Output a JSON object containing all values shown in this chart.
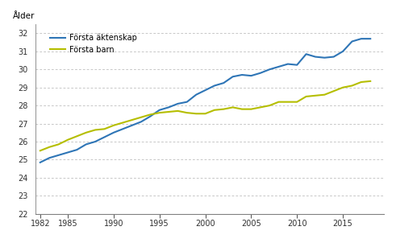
{
  "years": [
    1982,
    1983,
    1984,
    1985,
    1986,
    1987,
    1988,
    1989,
    1990,
    1991,
    1992,
    1993,
    1994,
    1995,
    1996,
    1997,
    1998,
    1999,
    2000,
    2001,
    2002,
    2003,
    2004,
    2005,
    2006,
    2007,
    2008,
    2009,
    2010,
    2011,
    2012,
    2013,
    2014,
    2015,
    2016,
    2017,
    2018
  ],
  "forsta_aktenskap": [
    24.85,
    25.1,
    25.25,
    25.4,
    25.55,
    25.85,
    26.0,
    26.25,
    26.5,
    26.7,
    26.9,
    27.1,
    27.4,
    27.75,
    27.9,
    28.1,
    28.2,
    28.6,
    28.85,
    29.1,
    29.25,
    29.6,
    29.7,
    29.65,
    29.8,
    30.0,
    30.15,
    30.3,
    30.25,
    30.85,
    30.7,
    30.65,
    30.7,
    31.0,
    31.55,
    31.7,
    31.7
  ],
  "forsta_barn": [
    25.5,
    25.7,
    25.85,
    26.1,
    26.3,
    26.5,
    26.65,
    26.7,
    26.9,
    27.05,
    27.2,
    27.35,
    27.5,
    27.6,
    27.65,
    27.7,
    27.6,
    27.55,
    27.55,
    27.75,
    27.8,
    27.9,
    27.8,
    27.8,
    27.9,
    28.0,
    28.2,
    28.2,
    28.2,
    28.5,
    28.55,
    28.6,
    28.8,
    29.0,
    29.1,
    29.3,
    29.35
  ],
  "aktenskap_color": "#2e75b6",
  "barn_color": "#b5be00",
  "ylim": [
    22,
    32.5
  ],
  "yticks": [
    22,
    23,
    24,
    25,
    26,
    27,
    28,
    29,
    30,
    31,
    32
  ],
  "xticks": [
    1982,
    1985,
    1990,
    1995,
    2000,
    2005,
    2010,
    2015
  ],
  "xlim": [
    1981.5,
    2019.5
  ],
  "ylabel": "Ålder",
  "legend_aktenskap": "Första äktenskap",
  "legend_barn": "Första barn",
  "background_color": "#ffffff",
  "grid_color": "#b0b0b0",
  "line_width": 1.5
}
